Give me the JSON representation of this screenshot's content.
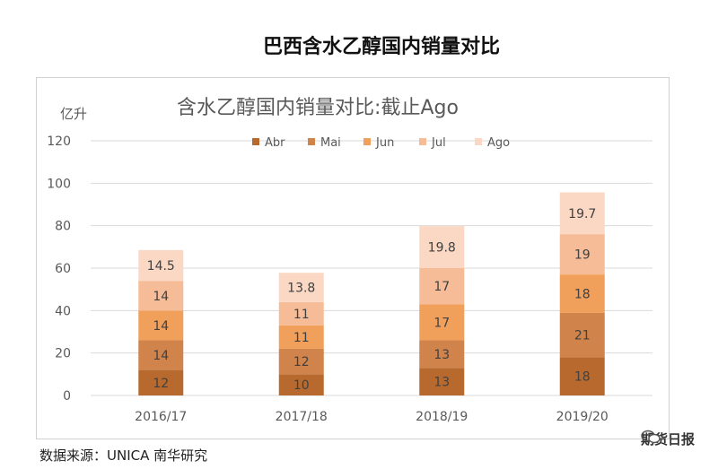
{
  "page_title": "巴西含水乙醇国内销量对比",
  "source": "数据来源：UNICA 南华研究",
  "watermark": {
    "text": "期货日报",
    "icon": "wechat-icon"
  },
  "chart_data": {
    "type": "bar",
    "stacked": true,
    "title": "含水乙醇国内销量对比:截止Ago",
    "ylabel": "亿升",
    "xlabel": "",
    "ylim": [
      0,
      120
    ],
    "yticks": [
      0,
      20,
      40,
      60,
      80,
      100,
      120
    ],
    "grid": true,
    "legend_position": "top",
    "categories": [
      "2016/17",
      "2017/18",
      "2018/19",
      "2019/20"
    ],
    "series": [
      {
        "name": "Abr",
        "color": "#b86a2e",
        "values": [
          12,
          10,
          13,
          18
        ]
      },
      {
        "name": "Mai",
        "color": "#d0834a",
        "values": [
          14,
          12,
          13,
          21
        ]
      },
      {
        "name": "Jun",
        "color": "#f0a05a",
        "values": [
          14,
          11,
          17,
          18
        ]
      },
      {
        "name": "Jul",
        "color": "#f5bc97",
        "values": [
          14,
          11,
          17,
          19
        ]
      },
      {
        "name": "Ago",
        "color": "#fad8c4",
        "values": [
          14.5,
          13.8,
          19.8,
          19.7
        ]
      }
    ]
  }
}
